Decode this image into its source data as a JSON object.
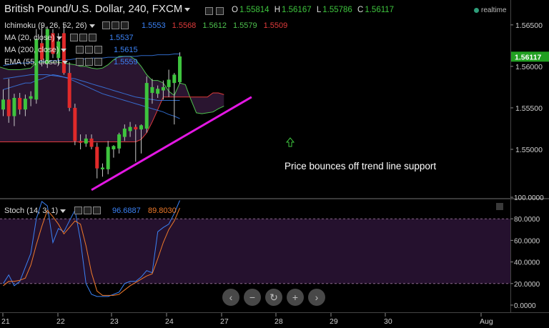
{
  "header": {
    "title": "British Pound/U.S. Dollar, 240, FXCM",
    "o_label": "O",
    "o_value": "1.55814",
    "h_label": "H",
    "h_value": "1.56167",
    "l_label": "L",
    "l_value": "1.55786",
    "c_label": "C",
    "c_value": "1.56117",
    "realtime": "realtime"
  },
  "indicators": {
    "ichimoku": {
      "label": "Ichimoku (9, 26, 52, 26)",
      "values": [
        "1.5553",
        "1.5568",
        "1.5612",
        "1.5579",
        "1.5509"
      ],
      "colors": [
        "#3b82f6",
        "#e03b3b",
        "#4ec24e",
        "#4ec24e",
        "#e03b3b"
      ]
    },
    "ma20": {
      "label": "MA (20, close)",
      "value": "1.5537",
      "color": "#3b82f6"
    },
    "ma200": {
      "label": "MA (200, close)",
      "value": "1.5615",
      "color": "#3b82f6"
    },
    "ema55": {
      "label": "EMA (55, close)",
      "value": "1.5559",
      "color": "#3b82f6"
    },
    "stoch": {
      "label": "Stoch (14, 3, 1)",
      "k": "96.6887",
      "d": "89.8030",
      "k_color": "#3b82f6",
      "d_color": "#f07a2a"
    }
  },
  "annotation": "Price bounces off trend line support",
  "nav_icons": [
    "chevron-left-icon",
    "zoom-out-icon",
    "reset-icon",
    "zoom-in-icon",
    "chevron-right-icon"
  ],
  "chart_data": [
    {
      "type": "candlestick",
      "title": "British Pound/U.S. Dollar, 240, FXCM",
      "y_ticks": [
        "1.56500",
        "1.56000",
        "1.55500",
        "1.55000"
      ],
      "y_range": [
        1.5444,
        1.568
      ],
      "last_price": "1.56117",
      "x_labels": [
        "21",
        "22",
        "23",
        "24",
        "27",
        "28",
        "29",
        "30",
        "Aug"
      ],
      "candles": [
        {
          "o": 1.5548,
          "h": 1.5572,
          "l": 1.554,
          "c": 1.556
        },
        {
          "o": 1.556,
          "h": 1.5585,
          "l": 1.5532,
          "c": 1.554
        },
        {
          "o": 1.554,
          "h": 1.5567,
          "l": 1.5528,
          "c": 1.5562
        },
        {
          "o": 1.5562,
          "h": 1.5568,
          "l": 1.5542,
          "c": 1.5548
        },
        {
          "o": 1.5548,
          "h": 1.5566,
          "l": 1.554,
          "c": 1.5561
        },
        {
          "o": 1.5561,
          "h": 1.557,
          "l": 1.5552,
          "c": 1.5564
        },
        {
          "o": 1.556,
          "h": 1.5645,
          "l": 1.5555,
          "c": 1.5633
        },
        {
          "o": 1.5628,
          "h": 1.565,
          "l": 1.56,
          "c": 1.5608
        },
        {
          "o": 1.5603,
          "h": 1.5648,
          "l": 1.5598,
          "c": 1.5645
        },
        {
          "o": 1.564,
          "h": 1.5645,
          "l": 1.561,
          "c": 1.5615
        },
        {
          "o": 1.561,
          "h": 1.564,
          "l": 1.5602,
          "c": 1.563
        },
        {
          "o": 1.564,
          "h": 1.565,
          "l": 1.559,
          "c": 1.5592
        },
        {
          "o": 1.5592,
          "h": 1.5605,
          "l": 1.5546,
          "c": 1.555
        },
        {
          "o": 1.555,
          "h": 1.5555,
          "l": 1.5505,
          "c": 1.551
        },
        {
          "o": 1.551,
          "h": 1.5518,
          "l": 1.55,
          "c": 1.5508
        },
        {
          "o": 1.5507,
          "h": 1.5518,
          "l": 1.5503,
          "c": 1.5513
        },
        {
          "o": 1.5513,
          "h": 1.5518,
          "l": 1.55,
          "c": 1.5503
        },
        {
          "o": 1.5503,
          "h": 1.5508,
          "l": 1.5465,
          "c": 1.5477
        },
        {
          "o": 1.5476,
          "h": 1.5483,
          "l": 1.5467,
          "c": 1.5478
        },
        {
          "o": 1.5476,
          "h": 1.551,
          "l": 1.547,
          "c": 1.5503
        },
        {
          "o": 1.55,
          "h": 1.5505,
          "l": 1.549,
          "c": 1.5504
        },
        {
          "o": 1.5501,
          "h": 1.552,
          "l": 1.5495,
          "c": 1.5518
        },
        {
          "o": 1.5515,
          "h": 1.553,
          "l": 1.551,
          "c": 1.5525
        },
        {
          "o": 1.5522,
          "h": 1.5533,
          "l": 1.5515,
          "c": 1.5527
        },
        {
          "o": 1.5527,
          "h": 1.553,
          "l": 1.5485,
          "c": 1.5524
        },
        {
          "o": 1.5524,
          "h": 1.553,
          "l": 1.5495,
          "c": 1.5529
        },
        {
          "o": 1.5525,
          "h": 1.5588,
          "l": 1.552,
          "c": 1.558
        },
        {
          "o": 1.5568,
          "h": 1.5585,
          "l": 1.5555,
          "c": 1.5575
        },
        {
          "o": 1.5567,
          "h": 1.5577,
          "l": 1.5562,
          "c": 1.5573
        },
        {
          "o": 1.5571,
          "h": 1.5583,
          "l": 1.556,
          "c": 1.5575
        },
        {
          "o": 1.5575,
          "h": 1.5596,
          "l": 1.5563,
          "c": 1.5584
        },
        {
          "o": 1.558,
          "h": 1.5592,
          "l": 1.553,
          "c": 1.559
        },
        {
          "o": 1.5581,
          "h": 1.5617,
          "l": 1.5579,
          "c": 1.5612
        }
      ],
      "series": [
        {
          "name": "Senkou Span A",
          "color": "#4ec24e",
          "start": -19,
          "values": [
            1.555,
            1.5552,
            1.5555,
            1.5558,
            1.5562,
            1.5565,
            1.557,
            1.5578,
            1.5586,
            1.5594,
            1.56,
            1.5603,
            1.5604,
            1.5604,
            1.5604,
            1.5604,
            1.5605,
            1.5603,
            1.56,
            1.5598,
            1.5596,
            1.5596,
            1.5596,
            1.5597,
            1.5598,
            1.5605,
            1.5605,
            1.5605,
            1.5605,
            1.5605,
            1.5604,
            1.5603,
            1.5602,
            1.56,
            1.56,
            1.5598,
            1.5597,
            1.5598,
            1.5602,
            1.5608,
            1.5612,
            1.5612,
            1.5612,
            1.5608,
            1.56,
            1.559,
            1.5583,
            1.5583,
            1.558,
            1.557,
            1.5565,
            1.558,
            1.5578,
            1.556,
            1.5544,
            1.5543,
            1.5544,
            1.5545,
            1.5549,
            1.5552
          ]
        },
        {
          "name": "Senkou Span B",
          "color": "#e03b3b",
          "start": -19,
          "values": [
            1.5521,
            1.5521,
            1.5522,
            1.5523,
            1.5525,
            1.5525,
            1.5528,
            1.553,
            1.5533,
            1.5533,
            1.5534,
            1.5534,
            1.5509,
            1.5509,
            1.5509,
            1.5509,
            1.5509,
            1.5509,
            1.5509,
            1.5509,
            1.5509,
            1.5509,
            1.5509,
            1.5509,
            1.5509,
            1.5509,
            1.5509,
            1.5509,
            1.5509,
            1.5509,
            1.5509,
            1.5509,
            1.5509,
            1.5509,
            1.5509,
            1.5509,
            1.5509,
            1.5509,
            1.5509,
            1.5509,
            1.5509,
            1.5509,
            1.5509,
            1.5509,
            1.5512,
            1.552,
            1.5533,
            1.5548,
            1.5563,
            1.5563,
            1.5563,
            1.5563,
            1.5563,
            1.5563,
            1.5563,
            1.5563,
            1.5563,
            1.5568,
            1.5568,
            1.5566
          ]
        },
        {
          "name": "MA (20, close)",
          "color": "#3b82f6",
          "start": 0,
          "values": [
            1.5572,
            1.5574,
            1.5576,
            1.5578,
            1.558,
            1.558,
            1.5583,
            1.5585,
            1.5588,
            1.559,
            1.5589,
            1.5587,
            1.5585,
            1.5582,
            1.5579,
            1.5576,
            1.5573,
            1.557,
            1.5567,
            1.5565,
            1.5563,
            1.5561,
            1.5559,
            1.5557,
            1.5555,
            1.5553,
            1.5551,
            1.5549,
            1.5547,
            1.5545,
            1.5542,
            1.554,
            1.5537
          ]
        },
        {
          "name": "MA (200, close)",
          "color": "#3b82f6",
          "start": 0,
          "values": [
            1.5601,
            1.5602,
            1.5603,
            1.5604,
            1.5604,
            1.5605,
            1.5605,
            1.5606,
            1.5606,
            1.5607,
            1.5607,
            1.5608,
            1.5608,
            1.5609,
            1.5609,
            1.5609,
            1.561,
            1.561,
            1.561,
            1.5611,
            1.5611,
            1.5611,
            1.5612,
            1.5612,
            1.5612,
            1.5613,
            1.5613,
            1.5613,
            1.5614,
            1.5614,
            1.5614,
            1.5615,
            1.5615
          ]
        },
        {
          "name": "EMA (55, close)",
          "color": "#3b82f6",
          "start": 0,
          "values": [
            1.5585,
            1.5586,
            1.5587,
            1.5588,
            1.5589,
            1.559,
            1.559,
            1.559,
            1.559,
            1.5589,
            1.5588,
            1.5587,
            1.5586,
            1.5585,
            1.5583,
            1.5581,
            1.5579,
            1.5577,
            1.5575,
            1.5573,
            1.5571,
            1.5569,
            1.5567,
            1.5565,
            1.5563,
            1.5562,
            1.5561,
            1.556,
            1.5559,
            1.5559,
            1.5559,
            1.5559,
            1.5559
          ]
        }
      ],
      "trend_line": {
        "from": {
          "bar": 16,
          "price": 1.5451
        },
        "to": {
          "bar": 45,
          "price": 1.5563
        }
      },
      "annotation": "Price bounces off trend line support"
    },
    {
      "type": "line",
      "title": "Stoch (14, 3, 1)",
      "y_ticks": [
        "100.0000",
        "80.0000",
        "60.0000",
        "40.0000",
        "20.0000",
        "0.0000"
      ],
      "y_range": [
        -4,
        100
      ],
      "bands": [
        80,
        20
      ],
      "series": [
        {
          "name": "%K",
          "color": "#3b82f6",
          "values": [
            20,
            28,
            18,
            22,
            35,
            48,
            80,
            96,
            92,
            58,
            71,
            68,
            78,
            88,
            60,
            20,
            10,
            8,
            8,
            8,
            10,
            12,
            20,
            22,
            22,
            26,
            32,
            30,
            68,
            72,
            75,
            85,
            97
          ]
        },
        {
          "name": "%D",
          "color": "#f07a2a",
          "values": [
            18,
            22,
            22,
            23,
            25,
            37,
            56,
            73,
            88,
            82,
            75,
            66,
            72,
            78,
            75,
            55,
            30,
            13,
            9,
            9,
            9,
            10,
            14,
            18,
            21,
            24,
            27,
            29,
            43,
            58,
            70,
            78,
            90
          ]
        }
      ]
    }
  ]
}
